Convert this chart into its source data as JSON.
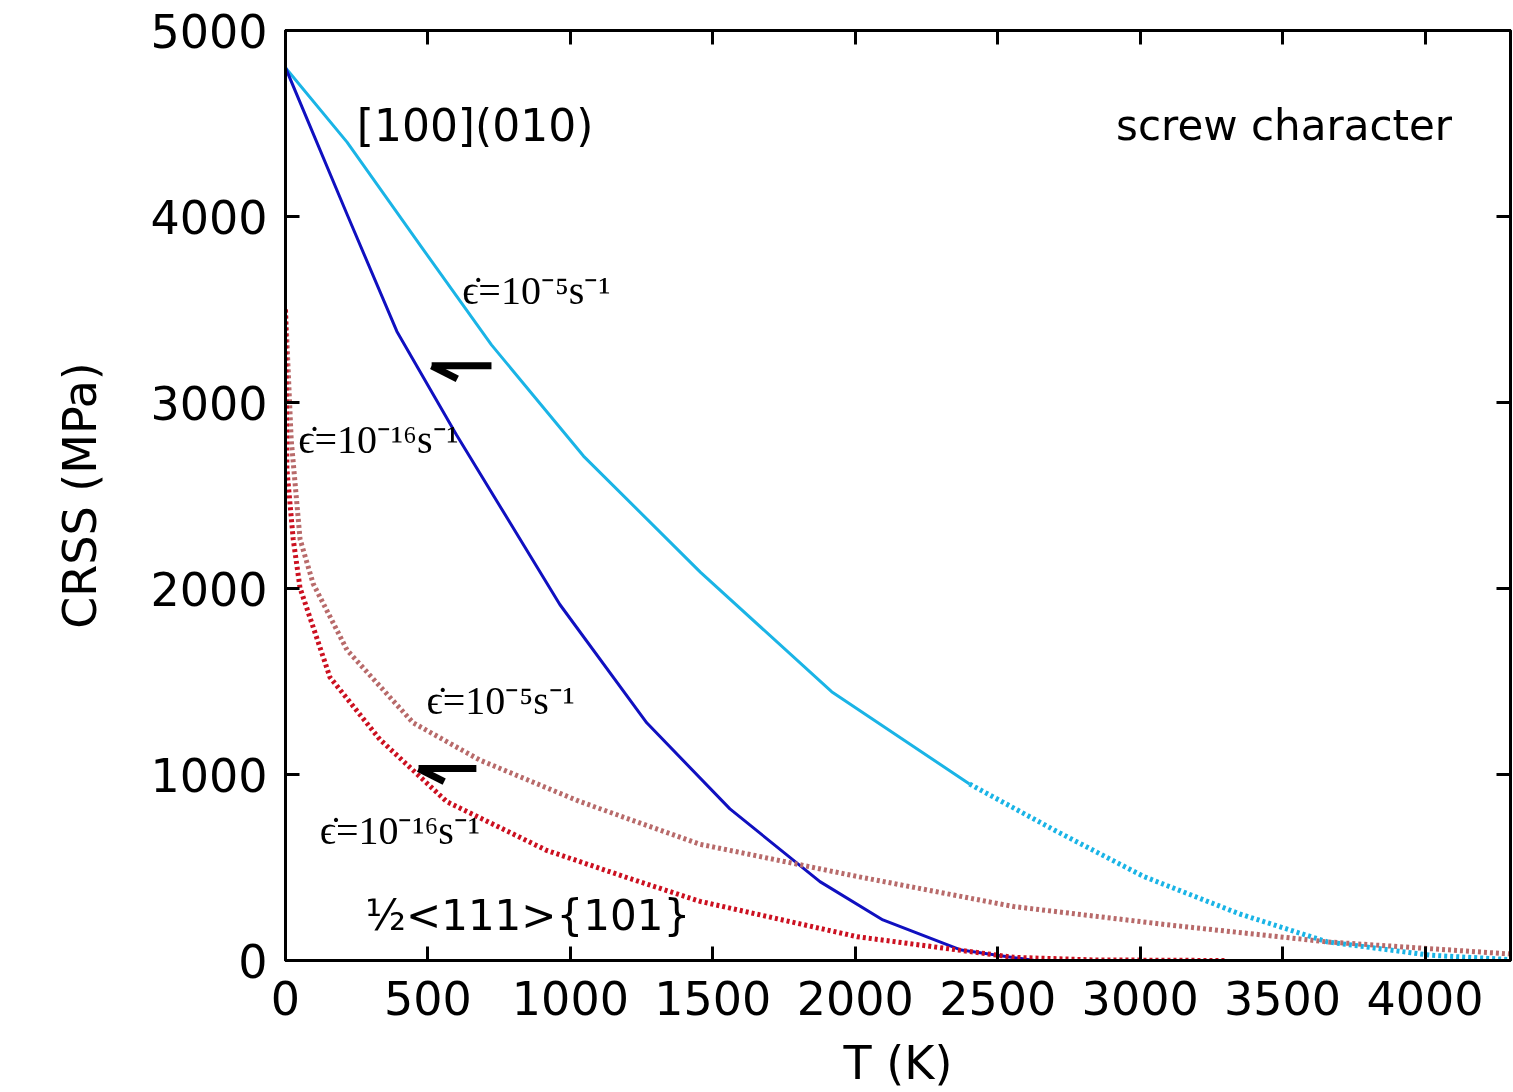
{
  "chart_data": {
    "type": "line",
    "xlabel": "T (K)",
    "ylabel": "CRSS (MPa)",
    "xlim": [
      0,
      4300
    ],
    "ylim": [
      0,
      5000
    ],
    "xticks": [
      0,
      500,
      1000,
      1500,
      2000,
      2500,
      3000,
      3500,
      4000
    ],
    "yticks": [
      0,
      1000,
      2000,
      3000,
      4000,
      5000
    ],
    "grid": false,
    "marker": "none",
    "series": [
      {
        "color": "#1ab4e6",
        "line_style": "solid",
        "x": [
          0,
          216,
          480,
          723,
          1046,
          1457,
          1917,
          2401
        ],
        "values": [
          4800,
          4400,
          3830,
          3310,
          2712,
          2087,
          1445,
          949
        ]
      },
      {
        "color": "#1ab4e6",
        "line_style": "dotted",
        "x": [
          2401,
          2700,
          3012,
          3350,
          3657,
          4020,
          4300
        ],
        "values": [
          949,
          700,
          452,
          250,
          100,
          28,
          5
        ]
      },
      {
        "color": "#1010c0",
        "line_style": "solid",
        "x": [
          0,
          216,
          391,
          601,
          963,
          1268,
          1560,
          1876,
          2097,
          2372,
          2629,
          2700
        ],
        "values": [
          4800,
          4012,
          3382,
          2824,
          1914,
          1278,
          815,
          424,
          218,
          56,
          0,
          0
        ]
      },
      {
        "color": "#b86a6a",
        "line_style": "dotted",
        "x": [
          0,
          20,
          51,
          97,
          216,
          448,
          683,
          1034,
          1455,
          2006,
          2556,
          3107,
          3657,
          4300
        ],
        "values": [
          3500,
          2800,
          2266,
          2026,
          1669,
          1278,
          1077,
          854,
          625,
          452,
          290,
          190,
          100,
          35
        ]
      },
      {
        "color": "#cc1020",
        "line_style": "dotted",
        "x": [
          0,
          5,
          27,
          51,
          156,
          331,
          566,
          917,
          1208,
          1455,
          2006,
          2556,
          2840,
          3300
        ],
        "values": [
          3500,
          2640,
          2266,
          2003,
          1523,
          1189,
          854,
          592,
          441,
          318,
          128,
          17,
          3,
          0
        ]
      }
    ],
    "annotations": [
      "[100](010)",
      "screw character",
      "ϵ̇=10⁻⁵s⁻¹",
      "ϵ̇=10⁻¹⁶s⁻¹",
      "ϵ̇=10⁻⁵s⁻¹",
      "ϵ̇=10⁻¹⁶s⁻¹",
      "½<111>{101}"
    ]
  }
}
